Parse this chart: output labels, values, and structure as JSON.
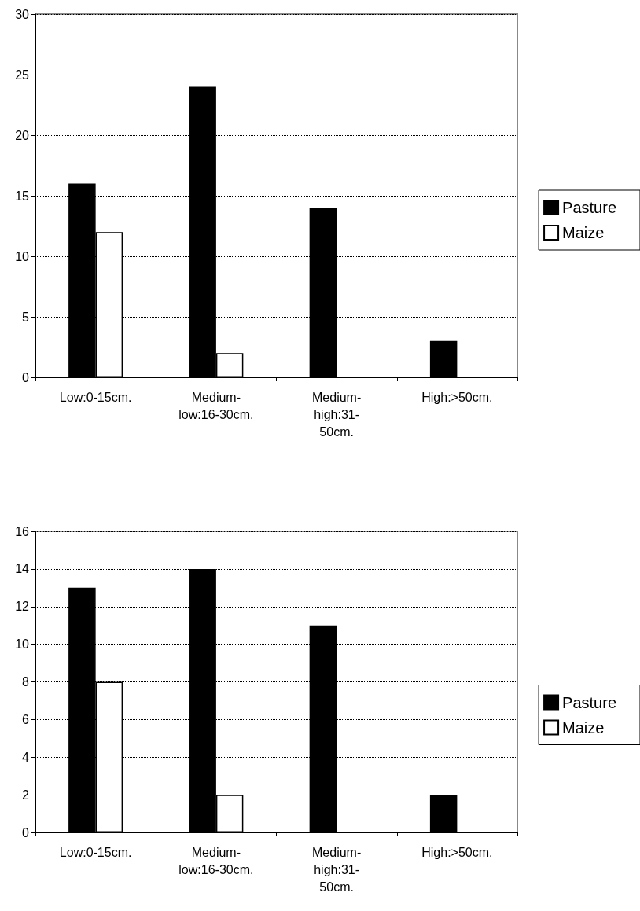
{
  "chart_data": [
    {
      "type": "bar",
      "categories": [
        "Low:0-15cm.",
        "Medium-low:16-30cm.",
        "Medium-high:31-50cm.",
        "High:>50cm."
      ],
      "series": [
        {
          "name": "Pasture",
          "color": "#000000",
          "values": [
            16,
            24,
            14,
            3
          ]
        },
        {
          "name": "Maize",
          "color": "#ffffff",
          "values": [
            12,
            2,
            0,
            0
          ]
        }
      ],
      "ylim": [
        0,
        30
      ],
      "yticks": [
        0,
        5,
        10,
        15,
        20,
        25,
        30
      ],
      "grid": "y",
      "legend": "right"
    },
    {
      "type": "bar",
      "categories": [
        "Low:0-15cm.",
        "Medium-low:16-30cm.",
        "Medium-high:31-50cm.",
        "High:>50cm."
      ],
      "series": [
        {
          "name": "Pasture",
          "color": "#000000",
          "values": [
            13,
            14,
            11,
            2
          ]
        },
        {
          "name": "Maize",
          "color": "#ffffff",
          "values": [
            8,
            2,
            0,
            0
          ]
        }
      ],
      "ylim": [
        0,
        16
      ],
      "yticks": [
        0,
        2,
        4,
        6,
        8,
        10,
        12,
        14,
        16
      ],
      "grid": "y",
      "legend": "right"
    }
  ]
}
